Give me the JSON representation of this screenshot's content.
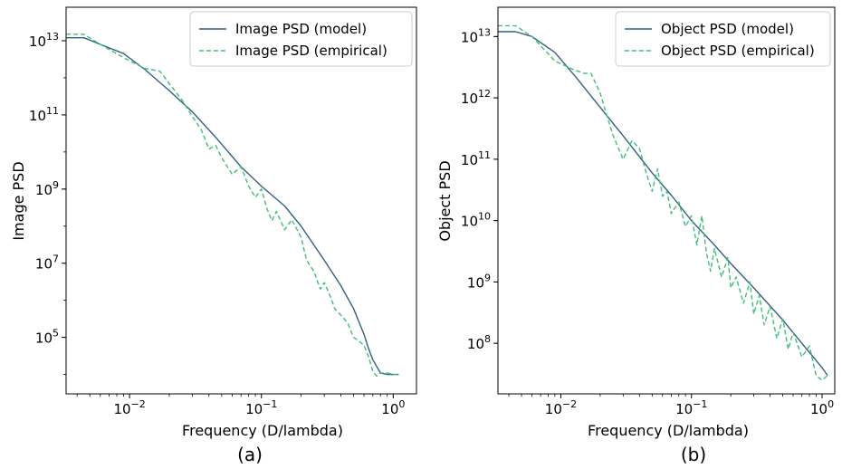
{
  "colors": {
    "model": "#33607f",
    "empirical": "#3cbf78",
    "frame": "#000000"
  },
  "chart_data": [
    {
      "type": "line",
      "xlabel": "Frequency (D/lambda)",
      "ylabel": "Image PSD",
      "panel_label": "(a)",
      "xscale": "log",
      "yscale": "log",
      "xlim": [
        0.0033,
        1.5
      ],
      "ylim": [
        3000.0,
        80000000000000.0
      ],
      "x_ticks": [
        {
          "value": 0.01,
          "base": "10",
          "exp": "−2"
        },
        {
          "value": 0.1,
          "base": "10",
          "exp": "−1"
        },
        {
          "value": 1,
          "base": "10",
          "exp": "0"
        }
      ],
      "y_ticks": [
        {
          "value": 100000.0,
          "base": "10",
          "exp": "5"
        },
        {
          "value": 10000000.0,
          "base": "10",
          "exp": "7"
        },
        {
          "value": 1000000000.0,
          "base": "10",
          "exp": "9"
        },
        {
          "value": 100000000000.0,
          "base": "10",
          "exp": "11"
        },
        {
          "value": 10000000000000.0,
          "base": "10",
          "exp": "13"
        }
      ],
      "legend_position": "upper right",
      "series": [
        {
          "name": "Image PSD (model)",
          "style": "solid",
          "x": [
            0.0033,
            0.0045,
            0.006,
            0.009,
            0.013,
            0.02,
            0.03,
            0.045,
            0.07,
            0.1,
            0.15,
            0.2,
            0.3,
            0.4,
            0.5,
            0.6,
            0.65,
            0.7,
            0.8,
            0.9,
            1.0,
            1.1
          ],
          "y": [
            12000000000000.0,
            12000000000000.0,
            8000000000000.0,
            4500000000000.0,
            1700000000000.0,
            450000000000.0,
            120000000000.0,
            25000000000.0,
            4000000000.0,
            1200000000.0,
            350000000.0,
            100000000.0,
            12000000.0,
            2500000.0,
            600000.0,
            120000.0,
            50000.0,
            25000.0,
            11000.0,
            10000.0,
            10000.0,
            10000.0
          ]
        },
        {
          "name": "Image PSD (empirical)",
          "style": "dashed",
          "x": [
            0.0033,
            0.0045,
            0.006,
            0.009,
            0.013,
            0.017,
            0.02,
            0.025,
            0.03,
            0.035,
            0.04,
            0.045,
            0.05,
            0.06,
            0.07,
            0.08,
            0.09,
            0.1,
            0.11,
            0.12,
            0.13,
            0.15,
            0.17,
            0.2,
            0.22,
            0.25,
            0.28,
            0.3,
            0.33,
            0.36,
            0.4,
            0.45,
            0.5,
            0.55,
            0.6,
            0.65,
            0.7,
            0.75,
            0.8,
            0.9,
            1.0,
            1.1
          ],
          "y": [
            15000000000000.0,
            15000000000000.0,
            8000000000000.0,
            3500000000000.0,
            1800000000000.0,
            1500000000000.0,
            700000000000.0,
            250000000000.0,
            90000000000.0,
            40000000000.0,
            12000000000.0,
            15000000000.0,
            7000000000.0,
            2500000000.0,
            4000000000.0,
            1200000000.0,
            600000000.0,
            1000000000.0,
            300000000.0,
            140000000.0,
            250000000.0,
            80000000.0,
            150000000.0,
            50000000.0,
            12000000.0,
            6000000.0,
            2000000.0,
            3000000.0,
            1400000.0,
            600000.0,
            400000.0,
            250000.0,
            100000.0,
            80000.0,
            60000.0,
            30000.0,
            12000.0,
            9000.0,
            11000.0,
            11000.0,
            10000.0,
            10000.0
          ]
        }
      ]
    },
    {
      "type": "line",
      "xlabel": "Frequency (D/lambda)",
      "ylabel": "Object PSD",
      "panel_label": "(b)",
      "xscale": "log",
      "yscale": "log",
      "xlim": [
        0.0033,
        1.25
      ],
      "ylim": [
        15000000.0,
        30000000000000.0
      ],
      "x_ticks": [
        {
          "value": 0.01,
          "base": "10",
          "exp": "−2"
        },
        {
          "value": 0.1,
          "base": "10",
          "exp": "−1"
        },
        {
          "value": 1,
          "base": "10",
          "exp": "0"
        }
      ],
      "y_ticks": [
        {
          "value": 100000000.0,
          "base": "10",
          "exp": "8"
        },
        {
          "value": 1000000000.0,
          "base": "10",
          "exp": "9"
        },
        {
          "value": 10000000000.0,
          "base": "10",
          "exp": "10"
        },
        {
          "value": 100000000000.0,
          "base": "10",
          "exp": "11"
        },
        {
          "value": 1000000000000.0,
          "base": "10",
          "exp": "12"
        },
        {
          "value": 10000000000000.0,
          "base": "10",
          "exp": "13"
        }
      ],
      "legend_position": "upper right",
      "series": [
        {
          "name": "Object PSD (model)",
          "style": "solid",
          "x": [
            0.0033,
            0.0045,
            0.006,
            0.009,
            0.013,
            0.02,
            0.03,
            0.05,
            0.07,
            0.1,
            0.15,
            0.2,
            0.3,
            0.5,
            0.7,
            1.0,
            1.1
          ],
          "y": [
            12000000000000.0,
            12000000000000.0,
            10000000000000.0,
            5500000000000.0,
            2200000000000.0,
            700000000000.0,
            240000000000.0,
            60000000000.0,
            26000000000.0,
            10000000000.0,
            4000000000.0,
            2000000000.0,
            800000000.0,
            240000000.0,
            100000000.0,
            40000000.0,
            30000000.0
          ]
        },
        {
          "name": "Object PSD (empirical)",
          "style": "dashed",
          "x": [
            0.0033,
            0.0045,
            0.006,
            0.009,
            0.012,
            0.015,
            0.017,
            0.02,
            0.022,
            0.025,
            0.03,
            0.035,
            0.04,
            0.045,
            0.05,
            0.055,
            0.06,
            0.065,
            0.07,
            0.08,
            0.09,
            0.1,
            0.11,
            0.12,
            0.13,
            0.14,
            0.15,
            0.17,
            0.19,
            0.2,
            0.22,
            0.25,
            0.28,
            0.3,
            0.33,
            0.36,
            0.4,
            0.45,
            0.5,
            0.55,
            0.6,
            0.7,
            0.8,
            0.9,
            1.0,
            1.1
          ],
          "y": [
            15000000000000.0,
            15000000000000.0,
            10000000000000.0,
            4000000000000.0,
            3000000000000.0,
            2500000000000.0,
            2500000000000.0,
            1200000000000.0,
            600000000000.0,
            250000000000.0,
            100000000000.0,
            200000000000.0,
            150000000000.0,
            60000000000.0,
            30000000000.0,
            70000000000.0,
            25000000000.0,
            30000000000.0,
            13000000000.0,
            20000000000.0,
            8000000000.0,
            12000000000.0,
            4000000000.0,
            12000000000.0,
            3000000000.0,
            1500000000.0,
            3500000000.0,
            1200000000.0,
            2500000000.0,
            800000000.0,
            1200000000.0,
            450000000.0,
            1000000000.0,
            300000000.0,
            600000000.0,
            200000000.0,
            400000000.0,
            120000000.0,
            250000000.0,
            80000000.0,
            150000000.0,
            60000000.0,
            90000000.0,
            30000000.0,
            25000000.0,
            30000000.0
          ]
        }
      ]
    }
  ]
}
